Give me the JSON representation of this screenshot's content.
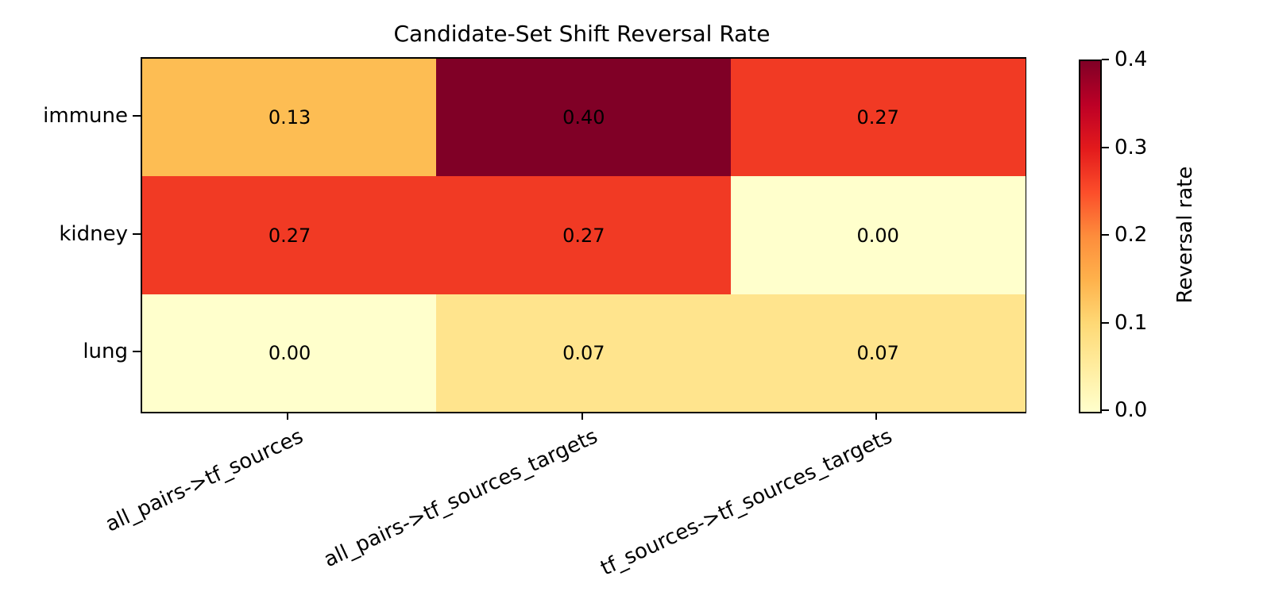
{
  "title": "Candidate-Set Shift Reversal Rate",
  "heatmap": {
    "rows": [
      "immune",
      "kidney",
      "lung"
    ],
    "columns": [
      "all_pairs->tf_sources",
      "all_pairs->tf_sources_targets",
      "tf_sources->tf_sources_targets"
    ],
    "cells": [
      [
        {
          "label": "0.13",
          "color": "#fdbd53"
        },
        {
          "label": "0.40",
          "color": "#800026"
        },
        {
          "label": "0.27",
          "color": "#f13a24"
        }
      ],
      [
        {
          "label": "0.27",
          "color": "#f13a24"
        },
        {
          "label": "0.27",
          "color": "#f13a24"
        },
        {
          "label": "0.00",
          "color": "#ffffcc"
        }
      ],
      [
        {
          "label": "0.00",
          "color": "#ffffcc"
        },
        {
          "label": "0.07",
          "color": "#ffe48d"
        },
        {
          "label": "0.07",
          "color": "#ffe48d"
        }
      ]
    ],
    "annotation_color": "#000000",
    "spine_color": "#000000"
  },
  "colorbar": {
    "label": "Reversal rate",
    "ticks": [
      "0.4",
      "0.3",
      "0.2",
      "0.1",
      "0.0"
    ],
    "gradient": [
      "#ffffcc",
      "#ffeda0",
      "#fed976",
      "#feb24c",
      "#fd8d3c",
      "#fc4e2a",
      "#e31a1c",
      "#bd0026",
      "#800026"
    ]
  },
  "chart_data": {
    "type": "heatmap",
    "title": "Candidate-Set Shift Reversal Rate",
    "rows": [
      "immune",
      "kidney",
      "lung"
    ],
    "columns": [
      "all_pairs->tf_sources",
      "all_pairs->tf_sources_targets",
      "tf_sources->tf_sources_targets"
    ],
    "values": [
      [
        0.13,
        0.4,
        0.27
      ],
      [
        0.27,
        0.27,
        0.0
      ],
      [
        0.0,
        0.07,
        0.07
      ]
    ],
    "colormap": "YlOrRd",
    "vmin": 0.0,
    "vmax": 0.4,
    "colorbar_label": "Reversal rate",
    "colorbar_ticks": [
      0.0,
      0.1,
      0.2,
      0.3,
      0.4
    ],
    "x_tick_rotation_deg": 25,
    "annotations_shown": true,
    "grid": false,
    "legend": "colorbar-right"
  }
}
